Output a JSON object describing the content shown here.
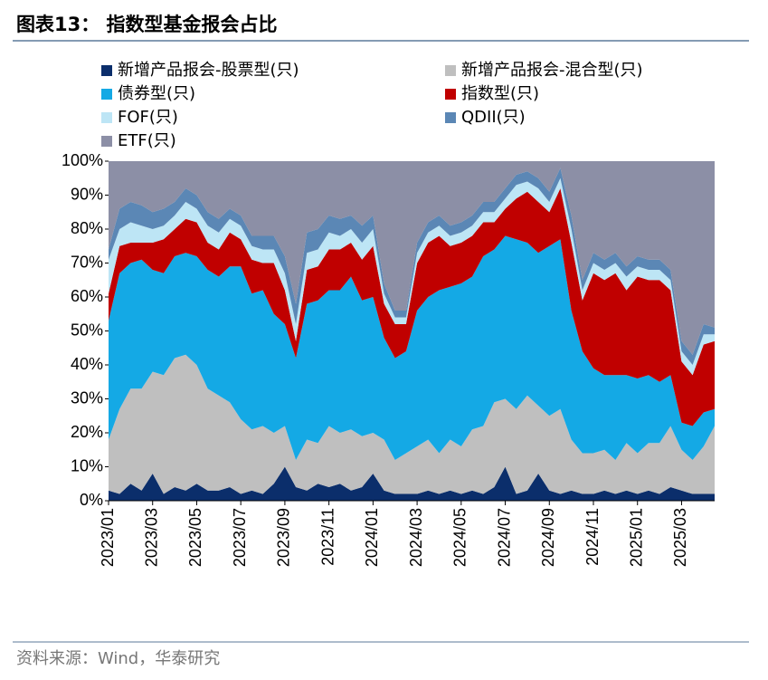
{
  "chart_data": {
    "type": "stacked_area",
    "title": "图表13：  指数型基金报会占比",
    "source": "资料来源：Wind，华泰研究",
    "categories": [
      "2023/01",
      null,
      null,
      null,
      "2023/03",
      null,
      null,
      null,
      "2023/05",
      null,
      null,
      null,
      "2023/07",
      null,
      null,
      null,
      "2023/09",
      null,
      null,
      null,
      "2023/11",
      null,
      null,
      null,
      "2024/01",
      null,
      null,
      null,
      "2024/03",
      null,
      null,
      null,
      "2024/05",
      null,
      null,
      null,
      "2024/07",
      null,
      null,
      null,
      "2024/09",
      null,
      null,
      null,
      "2024/11",
      null,
      null,
      null,
      "2025/01",
      null,
      null,
      null,
      "2025/03",
      null,
      null,
      null
    ],
    "series": [
      {
        "name": "新增产品报会-股票型(只)",
        "color": "#0b2e6b",
        "values": [
          3,
          2,
          5,
          3,
          8,
          2,
          4,
          3,
          5,
          3,
          3,
          4,
          2,
          3,
          2,
          5,
          10,
          4,
          3,
          5,
          4,
          5,
          3,
          4,
          8,
          3,
          2,
          2,
          2,
          3,
          2,
          3,
          2,
          3,
          2,
          4,
          10,
          2,
          3,
          8,
          3,
          2,
          3,
          2,
          2,
          3,
          2,
          3,
          2,
          3,
          2,
          4,
          3,
          2,
          2,
          2
        ]
      },
      {
        "name": "新增产品报会-混合型(只)",
        "color": "#bfbfbf",
        "values": [
          15,
          25,
          28,
          30,
          30,
          35,
          38,
          40,
          35,
          30,
          28,
          25,
          22,
          18,
          20,
          15,
          12,
          8,
          15,
          12,
          18,
          15,
          18,
          15,
          12,
          15,
          10,
          12,
          14,
          15,
          12,
          15,
          14,
          18,
          20,
          25,
          20,
          25,
          28,
          20,
          22,
          25,
          15,
          12,
          12,
          12,
          10,
          14,
          12,
          14,
          15,
          18,
          12,
          10,
          14,
          20
        ]
      },
      {
        "name": "债券型(只)",
        "color": "#14a9e5",
        "values": [
          35,
          40,
          37,
          38,
          30,
          30,
          30,
          30,
          32,
          35,
          35,
          40,
          45,
          40,
          40,
          35,
          30,
          30,
          40,
          42,
          40,
          42,
          45,
          40,
          40,
          30,
          30,
          30,
          40,
          42,
          48,
          45,
          48,
          45,
          50,
          45,
          48,
          50,
          45,
          45,
          50,
          50,
          38,
          30,
          25,
          22,
          25,
          20,
          22,
          20,
          18,
          15,
          8,
          10,
          10,
          5
        ]
      },
      {
        "name": "指数型(只)",
        "color": "#c00000",
        "values": [
          8,
          8,
          6,
          5,
          8,
          10,
          8,
          10,
          10,
          8,
          8,
          10,
          8,
          10,
          8,
          15,
          10,
          5,
          10,
          10,
          12,
          12,
          10,
          12,
          15,
          10,
          10,
          8,
          14,
          16,
          16,
          12,
          12,
          12,
          10,
          8,
          8,
          12,
          15,
          15,
          10,
          15,
          20,
          15,
          28,
          28,
          30,
          25,
          30,
          28,
          30,
          25,
          18,
          15,
          20,
          20
        ]
      },
      {
        "name": "FOF(只)",
        "color": "#bde5f5",
        "values": [
          10,
          5,
          6,
          5,
          4,
          4,
          4,
          5,
          4,
          5,
          5,
          4,
          4,
          4,
          4,
          4,
          5,
          5,
          5,
          5,
          5,
          4,
          4,
          5,
          5,
          3,
          2,
          2,
          3,
          3,
          3,
          3,
          3,
          3,
          3,
          3,
          3,
          4,
          3,
          4,
          3,
          3,
          4,
          3,
          3,
          3,
          3,
          4,
          3,
          3,
          3,
          3,
          3,
          3,
          3,
          2
        ]
      },
      {
        "name": "QDII(只)",
        "color": "#5b87b5",
        "values": [
          3,
          6,
          6,
          6,
          5,
          5,
          4,
          4,
          4,
          4,
          4,
          3,
          3,
          3,
          4,
          4,
          5,
          6,
          6,
          6,
          5,
          5,
          4,
          5,
          4,
          3,
          2,
          2,
          3,
          3,
          3,
          3,
          3,
          3,
          3,
          3,
          3,
          3,
          3,
          3,
          3,
          3,
          4,
          3,
          3,
          3,
          3,
          3,
          3,
          3,
          3,
          3,
          3,
          3,
          3,
          2
        ]
      },
      {
        "name": "ETF(只)",
        "color": "#8c8fa6",
        "values": [
          26,
          14,
          12,
          13,
          15,
          14,
          12,
          8,
          10,
          15,
          17,
          14,
          16,
          22,
          22,
          22,
          28,
          42,
          21,
          20,
          16,
          17,
          16,
          19,
          16,
          36,
          44,
          44,
          24,
          18,
          16,
          19,
          18,
          16,
          12,
          12,
          8,
          4,
          3,
          5,
          9,
          2,
          16,
          35,
          27,
          29,
          27,
          31,
          28,
          29,
          29,
          32,
          53,
          57,
          48,
          49
        ]
      }
    ],
    "ylim": [
      0,
      100
    ],
    "yticks": [
      {
        "value": 0,
        "label": "0%"
      },
      {
        "value": 10,
        "label": "10%"
      },
      {
        "value": 20,
        "label": "20%"
      },
      {
        "value": 30,
        "label": "30%"
      },
      {
        "value": 40,
        "label": "40%"
      },
      {
        "value": 50,
        "label": "50%"
      },
      {
        "value": 60,
        "label": "60%"
      },
      {
        "value": 70,
        "label": "70%"
      },
      {
        "value": 80,
        "label": "80%"
      },
      {
        "value": 90,
        "label": "90%"
      },
      {
        "value": 100,
        "label": "100%"
      }
    ]
  }
}
